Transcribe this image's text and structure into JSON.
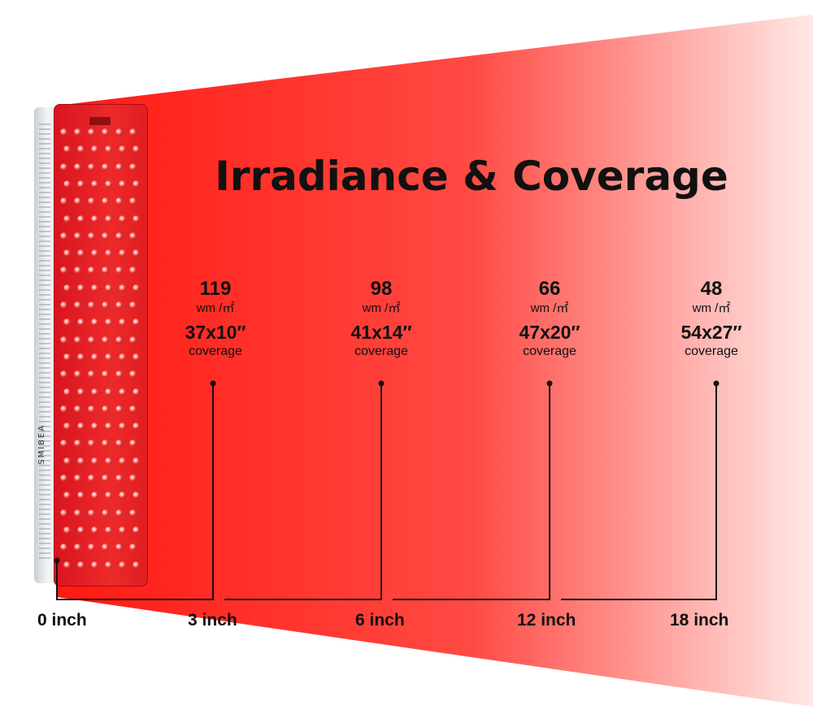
{
  "title": "Irradiance & Coverage",
  "brand": "SMIBEA",
  "colors": {
    "beam_start": "#ff1a12",
    "beam_end": "#ffe9e6",
    "text": "#111111"
  },
  "measurements": [
    {
      "distance": "3 inch",
      "irradiance": "119",
      "unit": "wm /㎡",
      "coverage": "37x10″",
      "coverage_label": "coverage"
    },
    {
      "distance": "6 inch",
      "irradiance": "98",
      "unit": "wm /㎡",
      "coverage": "41x14″",
      "coverage_label": "coverage"
    },
    {
      "distance": "12 inch",
      "irradiance": "66",
      "unit": "wm /㎡",
      "coverage": "47x20″",
      "coverage_label": "coverage"
    },
    {
      "distance": "18 inch",
      "irradiance": "48",
      "unit": "wm /㎡",
      "coverage": "54x27″",
      "coverage_label": "coverage"
    }
  ],
  "origin_label": "0 inch"
}
